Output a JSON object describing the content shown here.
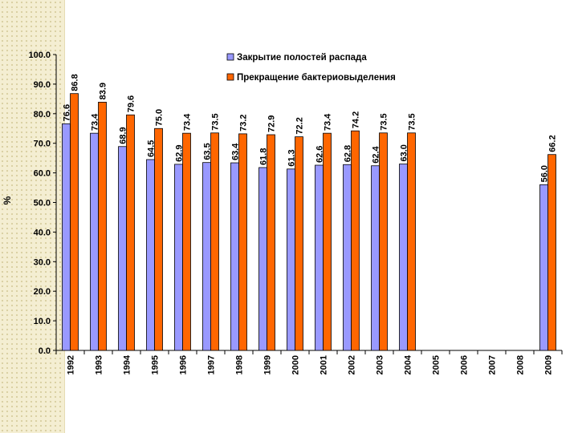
{
  "chart_data": {
    "type": "bar",
    "title": "",
    "xlabel": "",
    "ylabel": "%",
    "ylim": [
      0,
      100
    ],
    "yticks": [
      "0.0",
      "10.0",
      "20.0",
      "30.0",
      "40.0",
      "50.0",
      "60.0",
      "70.0",
      "80.0",
      "90.0",
      "100.0"
    ],
    "categories": [
      "1992",
      "1993",
      "1994",
      "1995",
      "1996",
      "1997",
      "1998",
      "1999",
      "2000",
      "2001",
      "2002",
      "2003",
      "2004",
      "2005",
      "2006",
      "2007",
      "2008",
      "2009"
    ],
    "series": [
      {
        "name": "Закрытие полостей распада",
        "color": "#9999ff",
        "values": [
          76.6,
          73.4,
          68.9,
          64.5,
          62.9,
          63.5,
          63.4,
          61.8,
          61.3,
          62.6,
          62.8,
          62.4,
          63.0,
          null,
          null,
          null,
          null,
          56.0
        ]
      },
      {
        "name": "Прекращение бактериовыделения",
        "color": "#ff6600",
        "values": [
          86.8,
          83.9,
          79.6,
          75.0,
          73.4,
          73.5,
          73.2,
          72.9,
          72.2,
          73.4,
          74.2,
          73.5,
          73.5,
          null,
          null,
          null,
          null,
          66.2
        ]
      }
    ],
    "legend_position": "top-right",
    "grid": false
  }
}
